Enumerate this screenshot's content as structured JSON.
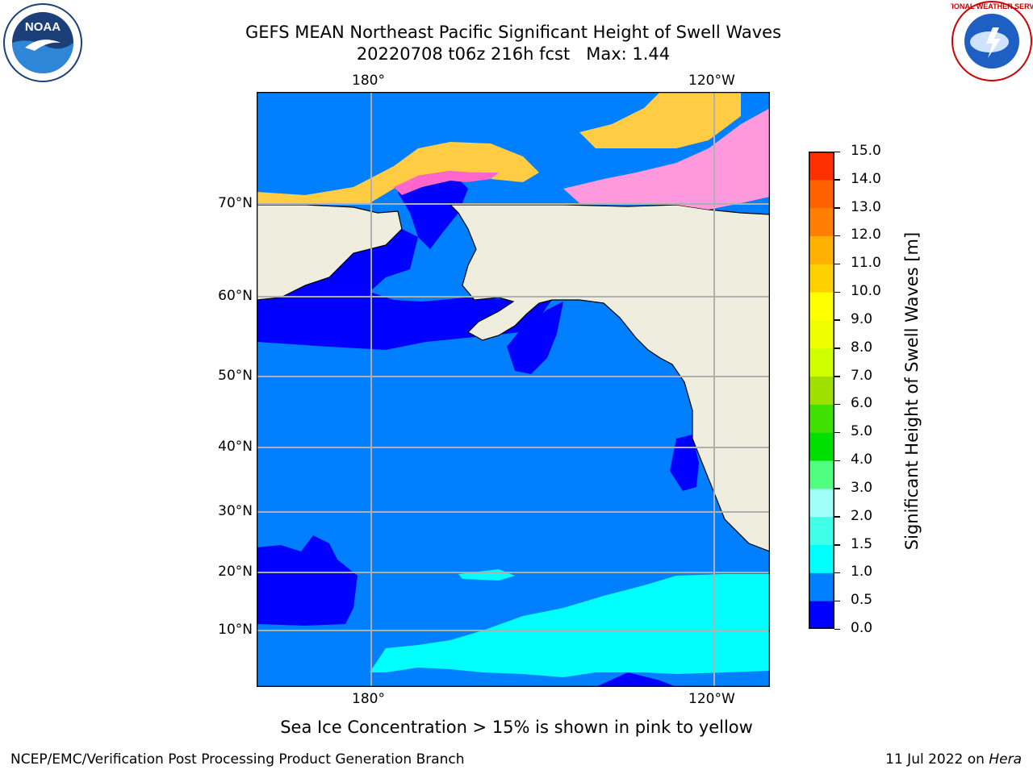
{
  "title": {
    "line1": "GEFS MEAN Northeast Pacific Significant Height of Swell Waves",
    "line2": "20220708 t06z 216h fcst   Max: 1.44"
  },
  "axes": {
    "top_lon_labels": [
      "180°",
      "120°W"
    ],
    "bottom_lon_labels": [
      "180°",
      "120°W"
    ],
    "lat_labels": [
      "70°N",
      "60°N",
      "50°N",
      "40°N",
      "30°N",
      "20°N",
      "10°N"
    ]
  },
  "colorbar": {
    "label": "Significant Height of Swell Waves [m]",
    "ticks": [
      "0.0",
      "0.5",
      "1.0",
      "1.5",
      "2.0",
      "3.0",
      "4.0",
      "5.0",
      "6.0",
      "7.0",
      "8.0",
      "9.0",
      "10.0",
      "11.0",
      "12.0",
      "13.0",
      "14.0",
      "15.0"
    ],
    "colors": [
      "#0000ff",
      "#0080ff",
      "#00ffff",
      "#40ffe8",
      "#a0fff8",
      "#50ff80",
      "#00e000",
      "#40e000",
      "#a0e000",
      "#d0ff00",
      "#f0ff00",
      "#ffff00",
      "#ffd000",
      "#ffb000",
      "#ff8000",
      "#ff6000",
      "#ff3000"
    ]
  },
  "map": {
    "land_color": "#efedde",
    "ocean_low_color": "#0000ff",
    "ocean_mid_color": "#0080ff",
    "ocean_high_color": "#00ffff",
    "ice_colors": [
      "#ff66cc",
      "#ffcc44",
      "#ff99dd"
    ]
  },
  "caption": "Sea Ice Concentration > 15% is shown in pink to yellow",
  "footer": {
    "left": "NCEP/EMC/Verification Post Processing Product Generation Branch",
    "right_date": "11 Jul 2022 on ",
    "right_host": "Hera"
  },
  "logos": {
    "noaa_text": "NOAA",
    "nws_text": "NATIONAL WEATHER SERVICE"
  }
}
